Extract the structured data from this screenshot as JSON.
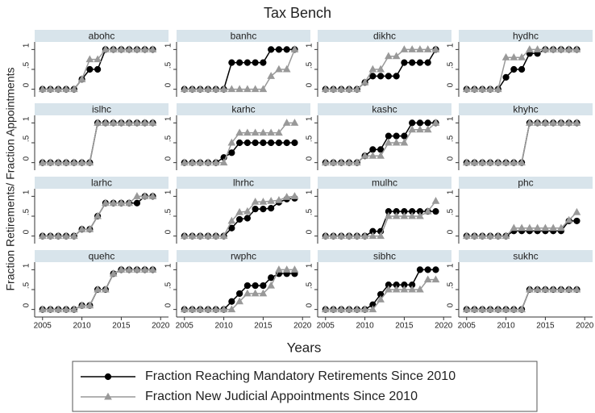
{
  "chart_data": {
    "type": "line",
    "title": "Tax Bench",
    "xlabel": "Years",
    "ylabel": "Fraction Retirements/ Fraction Appointments",
    "x": [
      2005,
      2006,
      2007,
      2008,
      2009,
      2010,
      2011,
      2012,
      2013,
      2014,
      2015,
      2016,
      2017,
      2018,
      2019
    ],
    "xlim": [
      2004,
      2021
    ],
    "xticks": [
      2005,
      2010,
      2015,
      2020
    ],
    "ylim": [
      -0.19,
      1.19
    ],
    "yticks": [
      0,
      {
        "value": 0.5,
        "label": ".5"
      },
      1
    ],
    "series": [
      {
        "name": "Fraction Reaching Mandatory Retirements Since 2010",
        "color": "#000000",
        "marker": "circle"
      },
      {
        "name": "Fraction New Judicial Appointments Since 2010",
        "color": "#999999",
        "marker": "triangle"
      }
    ],
    "panels": [
      {
        "title": "abohc",
        "series": [
          {
            "values": [
              0,
              0,
              0,
              0,
              0,
              0.25,
              0.5,
              0.5,
              1,
              1,
              1,
              1,
              1,
              1,
              1
            ]
          },
          {
            "values": [
              0,
              0,
              0,
              0,
              0,
              0.25,
              0.75,
              0.75,
              1,
              1,
              1,
              1,
              1,
              1,
              1
            ]
          }
        ]
      },
      {
        "title": "banhc",
        "series": [
          {
            "values": [
              0,
              0,
              0,
              0,
              0,
              0,
              0.67,
              0.67,
              0.67,
              0.67,
              0.67,
              1,
              1,
              1,
              1
            ]
          },
          {
            "values": [
              0,
              0,
              0,
              0,
              0,
              0,
              0,
              0,
              0,
              0,
              0,
              0.33,
              0.5,
              0.5,
              1
            ]
          }
        ]
      },
      {
        "title": "dikhc",
        "series": [
          {
            "values": [
              0,
              0,
              0,
              0,
              0,
              0.17,
              0.33,
              0.33,
              0.33,
              0.33,
              0.67,
              0.67,
              0.67,
              0.67,
              1
            ]
          },
          {
            "values": [
              0,
              0,
              0,
              0,
              0,
              0.17,
              0.5,
              0.5,
              0.83,
              0.83,
              1,
              1,
              1,
              1,
              1
            ]
          }
        ]
      },
      {
        "title": "hydhc",
        "series": [
          {
            "values": [
              0,
              0,
              0,
              0,
              0,
              0.3,
              0.5,
              0.5,
              0.9,
              0.9,
              1,
              1,
              1,
              1,
              1
            ]
          },
          {
            "values": [
              0,
              0,
              0,
              0,
              0,
              0.8,
              0.8,
              0.8,
              1,
              1,
              1,
              1,
              1,
              1,
              1
            ]
          }
        ]
      },
      {
        "title": "islhc",
        "series": [
          {
            "values": [
              0,
              0,
              0,
              0,
              0,
              0,
              0,
              1,
              1,
              1,
              1,
              1,
              1,
              1,
              1
            ]
          },
          {
            "values": [
              0,
              0,
              0,
              0,
              0,
              0,
              0,
              1,
              1,
              1,
              1,
              1,
              1,
              1,
              1
            ]
          }
        ]
      },
      {
        "title": "karhc",
        "series": [
          {
            "values": [
              0,
              0,
              0,
              0,
              0,
              0.13,
              0.25,
              0.5,
              0.5,
              0.5,
              0.5,
              0.5,
              0.5,
              0.5,
              0.5
            ]
          },
          {
            "values": [
              0,
              0,
              0,
              0,
              0,
              0,
              0.5,
              0.75,
              0.75,
              0.75,
              0.75,
              0.75,
              0.75,
              1,
              1
            ]
          }
        ]
      },
      {
        "title": "kashc",
        "series": [
          {
            "values": [
              0,
              0,
              0,
              0,
              0,
              0.17,
              0.33,
              0.33,
              0.67,
              0.67,
              0.67,
              1,
              1,
              1,
              1
            ]
          },
          {
            "values": [
              0,
              0,
              0,
              0,
              0,
              0.17,
              0.17,
              0.17,
              0.5,
              0.5,
              0.5,
              0.83,
              0.83,
              0.83,
              1
            ]
          }
        ]
      },
      {
        "title": "khyhc",
        "series": [
          {
            "values": [
              0,
              0,
              0,
              0,
              0,
              0,
              0,
              0,
              1,
              1,
              1,
              1,
              1,
              1,
              1
            ]
          },
          {
            "values": [
              0,
              0,
              0,
              0,
              0,
              0,
              0,
              0,
              1,
              1,
              1,
              1,
              1,
              1,
              1
            ]
          }
        ]
      },
      {
        "title": "larhc",
        "series": [
          {
            "values": [
              0,
              0,
              0,
              0,
              0,
              0.17,
              0.17,
              0.5,
              0.83,
              0.83,
              0.83,
              0.83,
              0.83,
              1,
              1
            ]
          },
          {
            "values": [
              0,
              0,
              0,
              0,
              0,
              0.17,
              0.17,
              0.5,
              0.83,
              0.83,
              0.83,
              0.83,
              1,
              1,
              1
            ]
          }
        ]
      },
      {
        "title": "lhrhc",
        "series": [
          {
            "values": [
              0,
              0,
              0,
              0,
              0,
              0,
              0.2,
              0.42,
              0.45,
              0.68,
              0.68,
              0.7,
              0.85,
              0.93,
              0.95
            ]
          },
          {
            "values": [
              0,
              0,
              0,
              0,
              0,
              0,
              0.38,
              0.6,
              0.62,
              0.86,
              0.86,
              0.88,
              0.9,
              0.98,
              1
            ]
          }
        ]
      },
      {
        "title": "mulhc",
        "series": [
          {
            "values": [
              0,
              0,
              0,
              0,
              0,
              0,
              0.12,
              0.12,
              0.62,
              0.62,
              0.62,
              0.62,
              0.62,
              0.62,
              0.62
            ]
          },
          {
            "values": [
              0,
              0,
              0,
              0,
              0,
              0,
              0,
              0,
              0.5,
              0.5,
              0.5,
              0.5,
              0.5,
              0.62,
              0.88
            ]
          }
        ]
      },
      {
        "title": "phc",
        "series": [
          {
            "values": [
              0,
              0,
              0,
              0,
              0,
              0,
              0.13,
              0.13,
              0.13,
              0.13,
              0.13,
              0.13,
              0.13,
              0.38,
              0.38
            ]
          },
          {
            "values": [
              0,
              0,
              0,
              0,
              0,
              0,
              0.2,
              0.2,
              0.2,
              0.2,
              0.2,
              0.2,
              0.2,
              0.4,
              0.6
            ]
          }
        ]
      },
      {
        "title": "quehc",
        "series": [
          {
            "values": [
              0,
              0,
              0,
              0,
              0,
              0.1,
              0.1,
              0.5,
              0.5,
              0.9,
              1,
              1,
              1,
              1,
              1
            ]
          },
          {
            "values": [
              0,
              0,
              0,
              0,
              0,
              0.1,
              0.1,
              0.5,
              0.5,
              0.9,
              1,
              1,
              1,
              1,
              1
            ]
          }
        ]
      },
      {
        "title": "rwphc",
        "series": [
          {
            "values": [
              0,
              0,
              0,
              0,
              0,
              0,
              0.2,
              0.4,
              0.6,
              0.6,
              0.6,
              0.8,
              0.9,
              0.9,
              0.9
            ]
          },
          {
            "values": [
              0,
              0,
              0,
              0,
              0,
              0,
              0,
              0.2,
              0.4,
              0.4,
              0.4,
              0.6,
              1,
              1,
              1
            ]
          }
        ]
      },
      {
        "title": "sibhc",
        "series": [
          {
            "values": [
              0,
              0,
              0,
              0,
              0,
              0,
              0.12,
              0.38,
              0.62,
              0.62,
              0.62,
              0.62,
              1,
              1,
              1
            ]
          },
          {
            "values": [
              0,
              0,
              0,
              0,
              0,
              0,
              0,
              0.25,
              0.5,
              0.5,
              0.5,
              0.5,
              0.5,
              0.75,
              0.75
            ]
          }
        ]
      },
      {
        "title": "sukhc",
        "series": [
          {
            "values": [
              0,
              0,
              0,
              0,
              0,
              0,
              0,
              0,
              0.5,
              0.5,
              0.5,
              0.5,
              0.5,
              0.5,
              0.5
            ]
          },
          {
            "values": [
              0,
              0,
              0,
              0,
              0,
              0,
              0,
              0,
              0.5,
              0.5,
              0.5,
              0.5,
              0.5,
              0.5,
              0.5
            ]
          }
        ]
      }
    ]
  }
}
